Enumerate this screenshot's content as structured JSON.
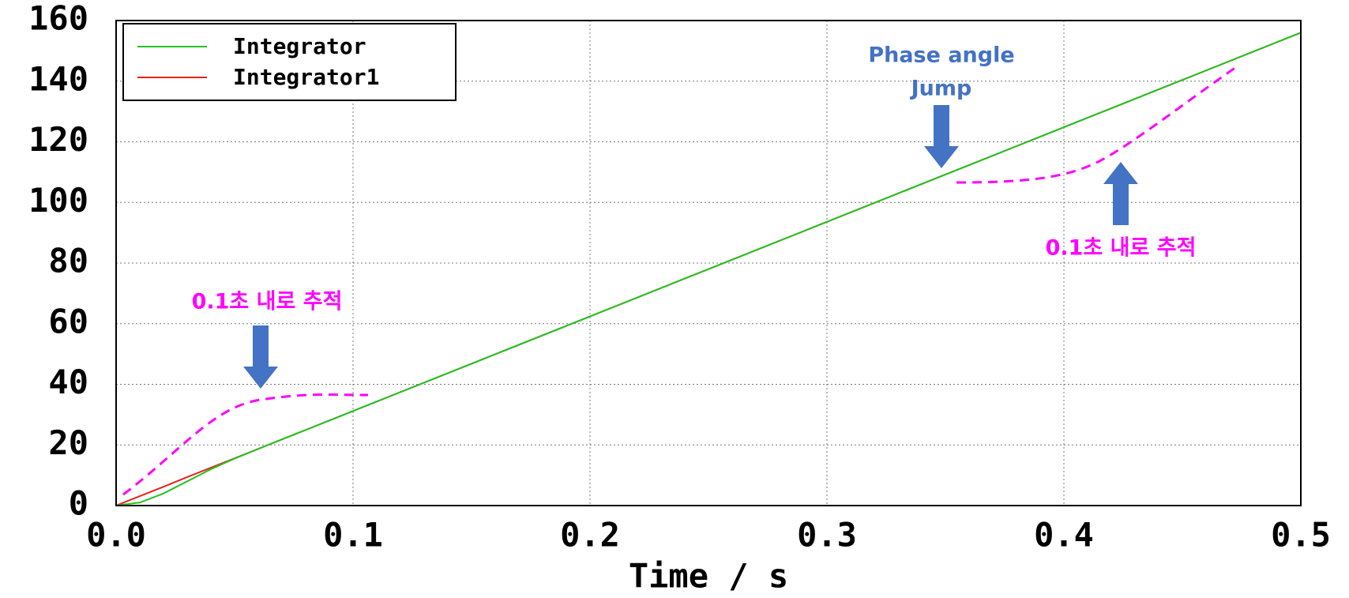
{
  "chart_data": {
    "type": "line",
    "xlabel": "Time / s",
    "x": [
      0,
      0.01,
      0.02,
      0.03,
      0.04,
      0.05,
      0.06,
      0.1,
      0.15,
      0.2,
      0.25,
      0.3,
      0.35,
      0.4,
      0.45,
      0.5
    ],
    "series": [
      {
        "name": "Integrator",
        "color": "#22c322",
        "values": [
          0,
          1,
          4,
          8,
          12,
          15.5,
          18.7,
          31.2,
          46.8,
          62.4,
          78,
          93.6,
          109.2,
          124.8,
          140.4,
          156
        ]
      },
      {
        "name": "Integrator1",
        "color": "#e8231c",
        "values": [
          0,
          3.1,
          6.2,
          9.4,
          12.5,
          15.6,
          18.7,
          31.2,
          46.8,
          62.4,
          78,
          93.6,
          109.2,
          124.8,
          140.4,
          156
        ]
      }
    ],
    "xlim": [
      0,
      0.5
    ],
    "xticks": [
      {
        "value": 0,
        "label": "0.0"
      },
      0.1,
      0.2,
      0.3,
      0.4,
      0.5
    ],
    "ylim": [
      0,
      160
    ],
    "yticks": [
      0,
      20,
      40,
      60,
      80,
      100,
      120,
      140,
      160
    ],
    "grid": true,
    "legend": "upper left",
    "annotations": [
      "0.1초 내로 추적",
      [
        "Phase angle",
        "Jump"
      ],
      "0.1초 내로 추적"
    ]
  }
}
